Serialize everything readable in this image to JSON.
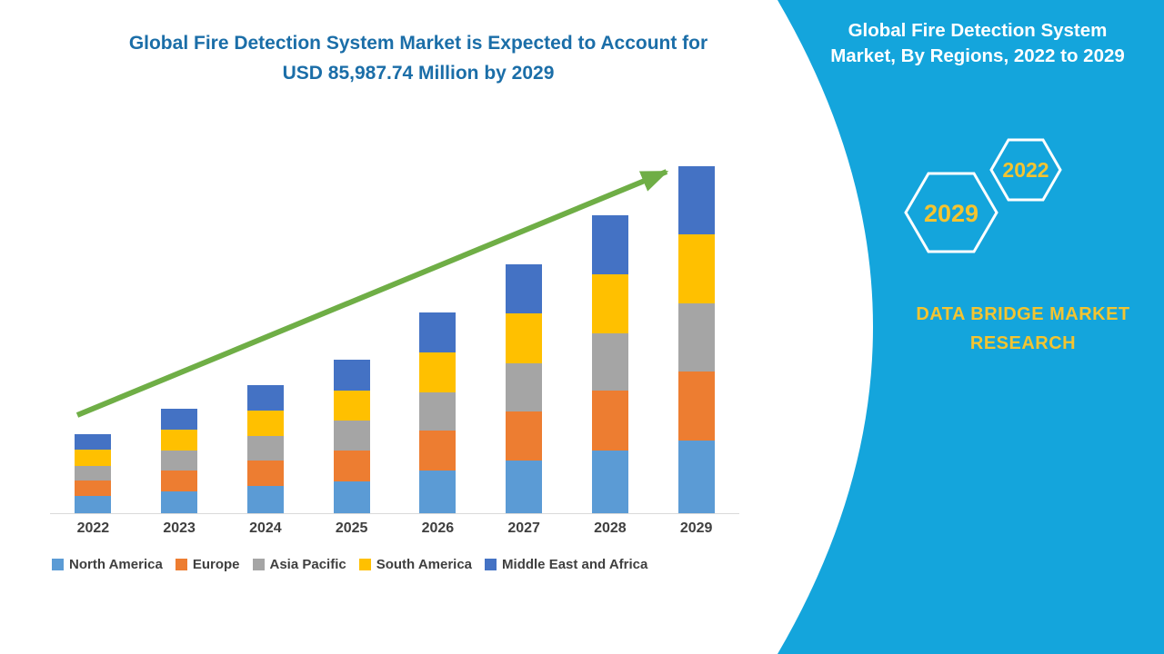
{
  "colors": {
    "panel_blue": "#14A5DC",
    "title_blue": "#1B6EA8",
    "arrow_green": "#6FAE46",
    "accent_yellow": "#F4C430",
    "hex_stroke": "#FFFFFF",
    "panel_title_text": "#FFFFFF",
    "axis_text": "#3F3F3F",
    "axis_line": "#D9D9D9"
  },
  "header": {
    "title_line1": "Global Fire Detection System Market is Expected to Account for",
    "title_line2": "USD 85,987.74 Million by 2029"
  },
  "right_panel": {
    "title_line1": "Global Fire Detection System",
    "title_line2": "Market, By Regions, 2022 to 2029",
    "hexagons": [
      {
        "label": "2029"
      },
      {
        "label": "2022"
      }
    ],
    "brand_line1": "DATA BRIDGE MARKET",
    "brand_line2": "RESEARCH"
  },
  "chart_data": {
    "type": "bar",
    "stacked": true,
    "title": "Global Fire Detection System Market is Expected to Account for USD 85,987.74 Million by 2029",
    "unit": "USD Million",
    "categories": [
      "2022",
      "2023",
      "2024",
      "2025",
      "2026",
      "2027",
      "2028",
      "2029"
    ],
    "series": [
      {
        "name": "North America",
        "color": "#5B9BD5",
        "values": [
          4200,
          5500,
          6700,
          8000,
          10500,
          13000,
          15600,
          18100
        ]
      },
      {
        "name": "Europe",
        "color": "#ED7D31",
        "values": [
          3900,
          5200,
          6300,
          7600,
          9900,
          12300,
          14700,
          17100
        ]
      },
      {
        "name": "Asia Pacific",
        "color": "#A5A5A5",
        "values": [
          3700,
          4900,
          6100,
          7300,
          9600,
          11900,
          14300,
          16700
        ]
      },
      {
        "name": "South America",
        "color": "#FFC000",
        "values": [
          3900,
          5200,
          6300,
          7600,
          9900,
          12300,
          14700,
          17100
        ]
      },
      {
        "name": "Middle East and Africa",
        "color": "#4472C4",
        "values": [
          3900,
          5100,
          6300,
          7500,
          9800,
          12200,
          14500,
          16987.74
        ]
      }
    ],
    "ylim": [
      0,
      90000
    ],
    "grid": false,
    "legend_position": "bottom",
    "trend_arrow": true
  }
}
